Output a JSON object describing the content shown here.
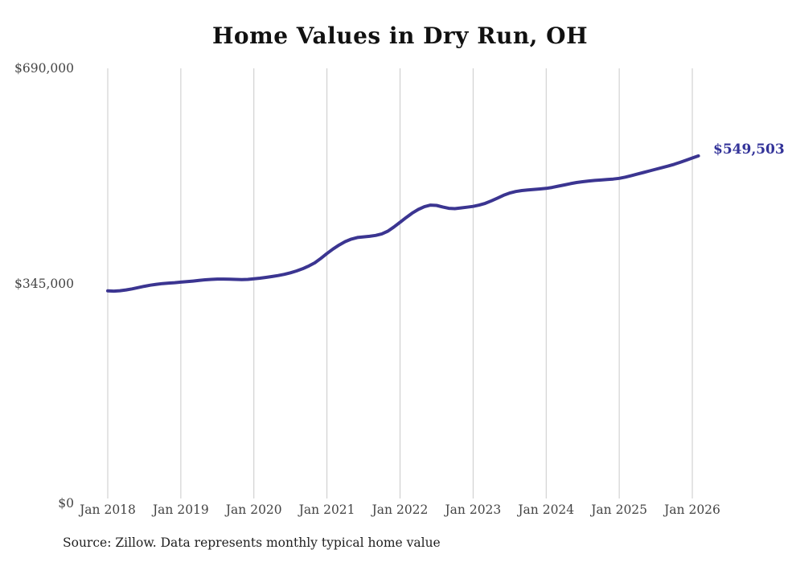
{
  "title": "Home Values in Dry Run, OH",
  "source_note": "Source: Zillow. Data represents monthly typical home value",
  "colors": {
    "background": "#ffffff",
    "line": "#3b3591",
    "end_label": "#333399",
    "gridline": "#c9c9c9",
    "axis_text": "#444444",
    "title_text": "#111111",
    "source_text": "#1f1f1f"
  },
  "chart_data": {
    "type": "line",
    "title": "Home Values in Dry Run, OH",
    "series_name": "Monthly typical home value, Dry Run OH (Zillow)",
    "frequency": "monthly",
    "start_month": "2018-01",
    "end_month": "2026-02",
    "grid": "vertical-only",
    "legend": "none",
    "ylim": [
      0,
      690000
    ],
    "months_per_xtick": 12,
    "x_tick_labels": [
      "Jan 2018",
      "Jan 2019",
      "Jan 2020",
      "Jan 2021",
      "Jan 2022",
      "Jan 2023",
      "Jan 2024",
      "Jan 2025",
      "Jan 2026"
    ],
    "y_ticks": [
      {
        "value": 0,
        "label": "$0"
      },
      {
        "value": 345000,
        "label": "$345,000"
      },
      {
        "value": 690000,
        "label": "$690,000"
      }
    ],
    "last_value": 549503,
    "last_value_label": "$549,503",
    "values": [
      333000,
      332600,
      333200,
      334500,
      336200,
      338300,
      340400,
      342200,
      343600,
      344700,
      345500,
      346200,
      347000,
      347800,
      348700,
      349800,
      350800,
      351500,
      351900,
      352000,
      351800,
      351400,
      351200,
      351500,
      352300,
      353400,
      354700,
      356100,
      357700,
      359600,
      362000,
      365000,
      368500,
      372800,
      378000,
      385200,
      393000,
      400200,
      406600,
      412100,
      416000,
      418600,
      419700,
      420600,
      422000,
      424400,
      428800,
      435500,
      443000,
      450600,
      457700,
      463700,
      468100,
      470600,
      470100,
      467600,
      465500,
      465000,
      466100,
      467300,
      468600,
      470600,
      473500,
      477400,
      481900,
      486400,
      490000,
      492400,
      494000,
      495000,
      495800,
      496600,
      497500,
      499000,
      501000,
      503000,
      505000,
      506800,
      508200,
      509300,
      510200,
      510900,
      511600,
      512400,
      513600,
      515500,
      518000,
      520500,
      523000,
      525500,
      528100,
      530600,
      533200,
      536000,
      539200,
      542700,
      546200,
      549503
    ]
  }
}
